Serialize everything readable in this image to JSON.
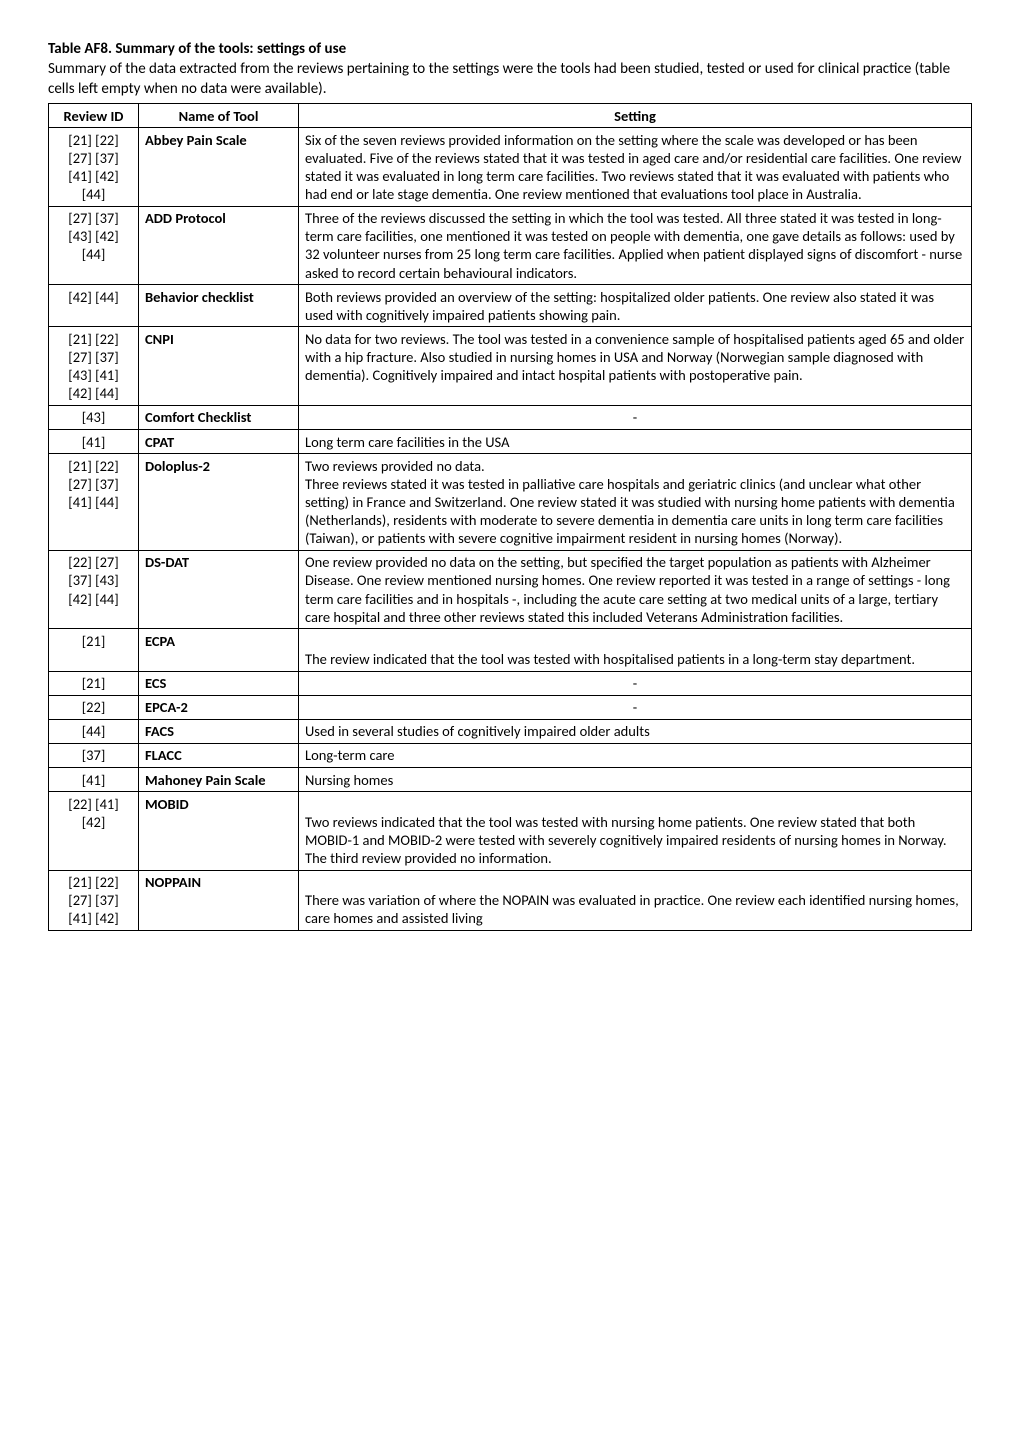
{
  "title": "Table AF8. Summary of the tools: settings of use",
  "subtitle": "Summary of the data extracted from the reviews pertaining to the settings were the tools had been studied, tested or used for clinical practice (table cells left empty when no data were available).",
  "columns": [
    "Review ID",
    "Name of Tool",
    "Setting"
  ],
  "rows": [
    {
      "refs": "[21] [22]\n[27] [37]\n[41] [42]\n[44]",
      "tool": "Abbey Pain Scale",
      "setting": "Six of the seven reviews provided information on the setting where the scale was developed or has been evaluated. Five of the reviews stated that it was tested in aged care and/or residential care facilities. One review stated it was evaluated in long term care facilities. Two reviews stated that it was evaluated with patients who had end or late stage dementia.  One review mentioned that evaluations tool place in Australia."
    },
    {
      "refs": "[27] [37]\n[43] [42]\n[44]",
      "tool": "ADD Protocol",
      "setting": "Three of the reviews discussed the setting in which the tool was tested. All three stated it was tested in long-term care facilities, one mentioned it was tested on people with dementia, one gave details as follows: used by 32 volunteer nurses from 25 long term care facilities. Applied when patient displayed signs of discomfort - nurse asked to record certain behavioural indicators."
    },
    {
      "refs": "[42] [44]",
      "tool": "Behavior checklist",
      "setting": "Both reviews provided an overview of the setting: hospitalized older patients. One review also stated it was used with cognitively impaired patients showing pain."
    },
    {
      "refs": "[21] [22]\n[27] [37]\n[43] [41]\n[42] [44]",
      "tool": "CNPI",
      "setting": "No data for two reviews. The tool was tested in a convenience sample of hospitalised patients aged 65 and older with a hip fracture. Also studied in nursing homes in USA and Norway (Norwegian sample diagnosed with dementia). Cognitively impaired and intact hospital patients with postoperative pain."
    },
    {
      "refs": "[43]",
      "tool": "Comfort Checklist",
      "setting": "-",
      "center": true
    },
    {
      "refs": "[41]",
      "tool": "CPAT",
      "setting": "Long term care facilities in the USA"
    },
    {
      "refs": "[21] [22]\n[27] [37]\n[41] [44]",
      "tool": "Doloplus-2",
      "setting": "Two reviews provided no data.\nThree reviews stated it was tested in palliative care hospitals and geriatric clinics (and unclear what other setting) in France and Switzerland. One review stated it was studied with nursing home patients with dementia (Netherlands), residents with moderate to severe dementia in dementia care units in long term care facilities (Taiwan), or patients with severe cognitive impairment resident in nursing homes (Norway)."
    },
    {
      "refs": "[22] [27]\n[37] [43]\n[42] [44]",
      "tool": "DS-DAT",
      "setting": "One review provided no data on the setting, but specified the target population as patients with Alzheimer Disease. One review mentioned nursing homes. One review reported it was tested in a range of settings - long term care facilities and in hospitals -, including the acute care setting at two medical units of a large, tertiary care hospital and three other reviews stated this included Veterans Administration facilities."
    },
    {
      "refs": "[21]",
      "tool": "ECPA",
      "setting": "\nThe review indicated that the tool was tested with hospitalised patients in a long-term stay department."
    },
    {
      "refs": "[21]",
      "tool": "ECS",
      "setting": "-",
      "center": true
    },
    {
      "refs": "[22]",
      "tool": "EPCA-2",
      "setting": "-",
      "center": true
    },
    {
      "refs": "[44]",
      "tool": "FACS",
      "setting": "Used in several studies of cognitively impaired older adults"
    },
    {
      "refs": "[37]",
      "tool": "FLACC",
      "setting": "Long-term care"
    },
    {
      "refs": "[41]",
      "tool": "Mahoney Pain Scale",
      "setting": "Nursing homes"
    },
    {
      "refs": "[22] [41]\n[42]",
      "tool": "MOBID",
      "setting": "\nTwo reviews indicated that the tool was tested with nursing home patients. One review stated that both MOBID-1 and MOBID-2 were tested with severely cognitively impaired residents of nursing homes in Norway. The third review provided no information."
    },
    {
      "refs": "[21] [22]\n[27] [37]\n[41] [42]",
      "tool": "NOPPAIN",
      "setting": "\nThere was variation of where the NOPAIN was evaluated in practice. One review each identified nursing homes, care homes and assisted living"
    }
  ]
}
